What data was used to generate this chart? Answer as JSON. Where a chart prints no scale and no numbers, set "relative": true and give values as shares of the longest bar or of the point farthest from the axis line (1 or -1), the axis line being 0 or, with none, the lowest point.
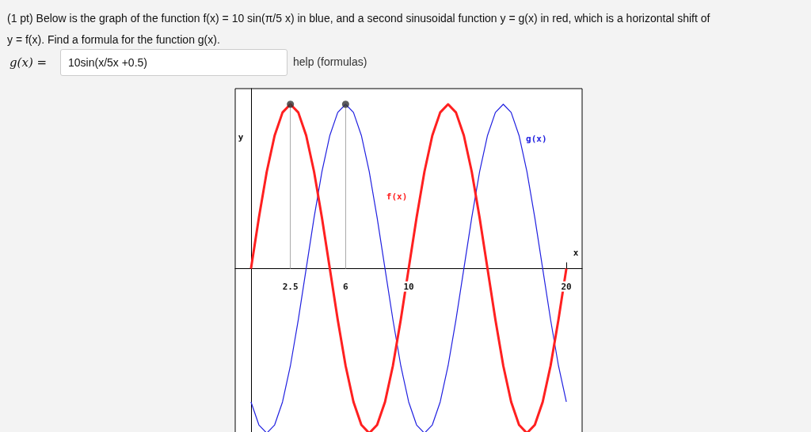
{
  "chart_data": {
    "type": "line",
    "title": "(1 pt) Below is the graph of the function f(x) = 10 sin(π/5 x) in blue, and a second sinusoidal function y = g(x) in red, which is a horizontal shift of y = f(x). Find a formula for the function g(x).",
    "annotations": [
      "g(x) =",
      "10sin(x/5x +0.5)",
      "help (formulas)"
    ],
    "xlabel": "x",
    "ylabel": "y",
    "relative": true,
    "grid": false,
    "x": [
      0,
      0.5,
      1,
      1.5,
      2,
      2.5,
      3,
      3.5,
      4,
      4.5,
      5,
      5.5,
      6,
      6.5,
      7,
      7.5,
      8,
      8.5,
      9,
      9.5,
      10,
      10.5,
      11,
      11.5,
      12,
      12.5,
      13,
      13.5,
      14,
      14.5,
      15,
      15.5,
      16,
      16.5,
      17,
      17.5,
      18,
      18.5,
      19,
      19.5,
      20
    ],
    "xlim": [
      -1,
      21
    ],
    "xticks": [
      2.5,
      6,
      10,
      20
    ],
    "series": [
      {
        "name": "f(x)",
        "color": "#ff2020",
        "values": [
          0,
          0.31,
          0.59,
          0.81,
          0.95,
          1,
          0.95,
          0.81,
          0.59,
          0.31,
          0,
          -0.31,
          -0.59,
          -0.81,
          -0.95,
          -1,
          -0.95,
          -0.81,
          -0.59,
          -0.31,
          0,
          0.31,
          0.59,
          0.81,
          0.95,
          1,
          0.95,
          0.81,
          0.59,
          0.31,
          0,
          -0.31,
          -0.59,
          -0.81,
          -0.95,
          -1,
          -0.95,
          -0.81,
          -0.59,
          -0.31,
          0
        ]
      },
      {
        "name": "g(x)",
        "color": "#2020e0",
        "values": [
          -0.81,
          -0.95,
          -1,
          -0.95,
          -0.81,
          -0.59,
          -0.31,
          0,
          0.31,
          0.59,
          0.81,
          0.95,
          1,
          0.95,
          0.81,
          0.59,
          0.31,
          0,
          -0.31,
          -0.59,
          -0.81,
          -0.95,
          -1,
          -0.95,
          -0.81,
          -0.59,
          -0.31,
          0,
          0.31,
          0.59,
          0.81,
          0.95,
          1,
          0.95,
          0.81,
          0.59,
          0.31,
          0,
          -0.31,
          -0.59,
          -0.81
        ]
      },
      {
        "type": "scatter",
        "color": "#333333",
        "x": [
          2.5,
          6
        ],
        "values": [
          1,
          1
        ]
      }
    ],
    "ref_lines": [
      {
        "axis": "x",
        "value": 2.5,
        "color": "#aaaaaa"
      },
      {
        "axis": "x",
        "value": 6,
        "color": "#aaaaaa"
      }
    ]
  }
}
